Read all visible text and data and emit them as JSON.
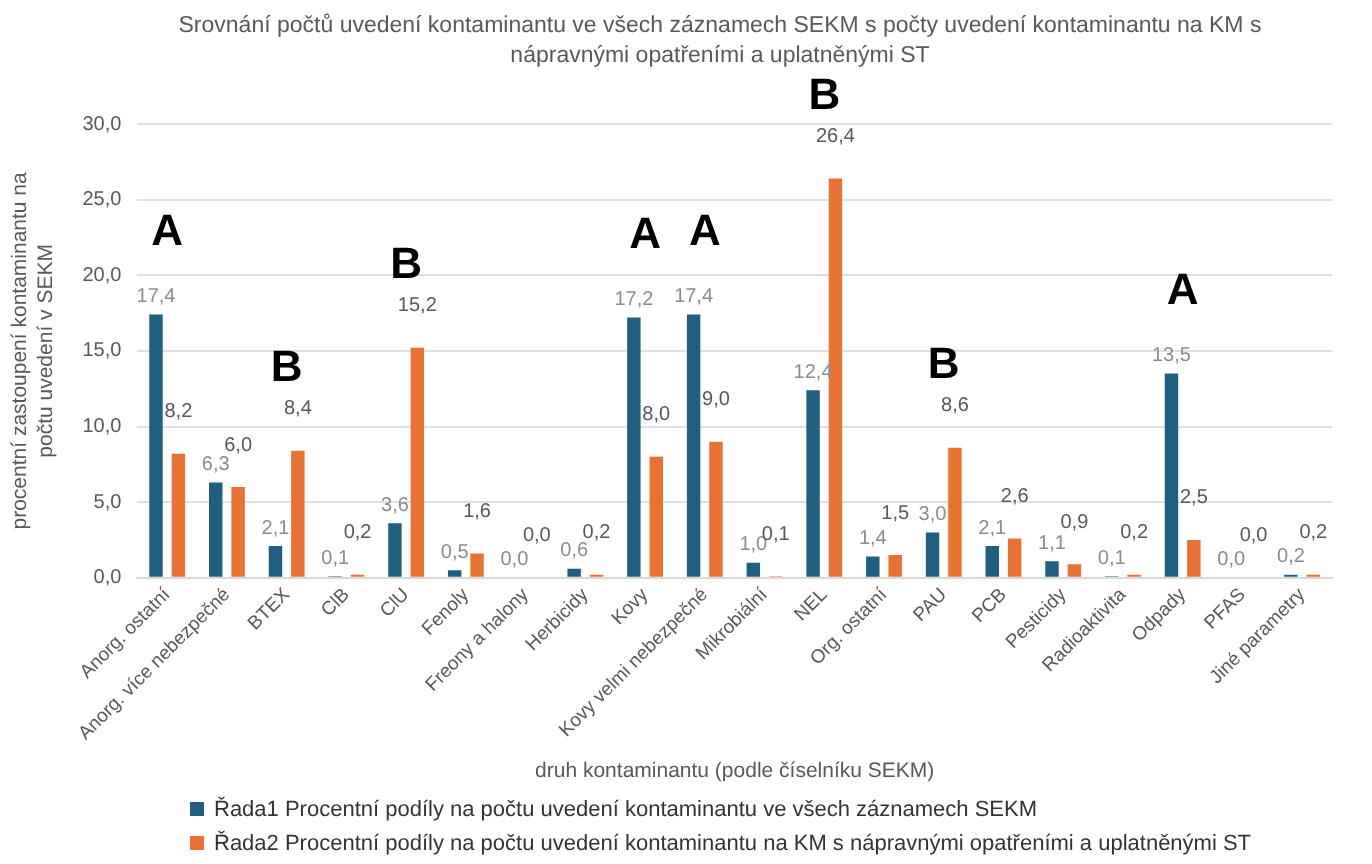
{
  "chart_data": {
    "type": "bar",
    "title": "Srovnání počtů uvedení kontaminantu ve všech záznamech SEKM s počty uvedení kontaminantu na KM s nápravnými opatřeními a uplatněnými ST",
    "xlabel": "druh kontaminantu (podle číselníku SEKM)",
    "ylabel": "procentní zastoupení kontaminantu na počtu uvedení v SEKM",
    "categories": [
      "Anorg. ostatní",
      "Anorg. více nebezpečné",
      "BTEX",
      "ClB",
      "ClU",
      "Fenoly",
      "Freony a halony",
      "Herbicidy",
      "Kovy",
      "Kovy velmi nebezpečné",
      "Mikrobiální",
      "NEL",
      "Org. ostatní",
      "PAU",
      "PCB",
      "Pesticidy",
      "Radioaktivita",
      "Odpady",
      "PFAS",
      "Jiné parametry"
    ],
    "series": [
      {
        "name": "Řada1 Procentní podíly na počtu uvedení kontaminantu ve všech záznamech SEKM",
        "color": "#1f5f82",
        "values": [
          17.4,
          6.3,
          2.1,
          0.1,
          3.6,
          0.5,
          0.0,
          0.6,
          17.2,
          17.4,
          1.0,
          12.4,
          1.4,
          3.0,
          2.1,
          1.1,
          0.1,
          13.5,
          0.0,
          0.2
        ],
        "value_labels": [
          "17,4",
          "6,3",
          "2,1",
          "0,1",
          "3,6",
          "0,5",
          "0,0",
          "0,6",
          "17,2",
          "17,4",
          "1,0",
          "12,4",
          "1,4",
          "3,0",
          "2,1",
          "1,1",
          "0,1",
          "13,5",
          "0,0",
          "0,2"
        ]
      },
      {
        "name": "Řada2 Procentní podíly na počtu uvedení kontaminantu na KM s nápravnými opatřeními a uplatněnými ST",
        "color": "#e97132",
        "values": [
          8.2,
          6.0,
          8.4,
          0.2,
          15.2,
          1.6,
          0.0,
          0.2,
          8.0,
          9.0,
          0.1,
          26.4,
          1.5,
          8.6,
          2.6,
          0.9,
          0.2,
          2.5,
          0.0,
          0.2
        ],
        "value_labels": [
          "8,2",
          "6,0",
          "8,4",
          "0,2",
          "15,2",
          "1,6",
          "0,0",
          "0,2",
          "8,0",
          "9,0",
          "0,1",
          "26,4",
          "1,5",
          "8,6",
          "2,6",
          "0,9",
          "0,2",
          "2,5",
          "0,0",
          "0,2"
        ]
      }
    ],
    "ylim": [
      0,
      30
    ],
    "yticks": [
      {
        "value": 0,
        "label": "0,0"
      },
      {
        "value": 5,
        "label": "5,0"
      },
      {
        "value": 10,
        "label": "10,0"
      },
      {
        "value": 15,
        "label": "15,0"
      },
      {
        "value": 20,
        "label": "20,0"
      },
      {
        "value": 25,
        "label": "25,0"
      },
      {
        "value": 30,
        "label": "30,0"
      }
    ],
    "grid": "y",
    "legend": "bottom",
    "annotations": [
      {
        "text": "A",
        "x": "Anorg. ostatní",
        "y": 17.4
      },
      {
        "text": "B",
        "x": "BTEX",
        "y": 8.4
      },
      {
        "text": "B",
        "x": "ClU",
        "y": 15.2
      },
      {
        "text": "A",
        "x": "Kovy",
        "y": 17.2
      },
      {
        "text": "A",
        "x": "Kovy velmi nebezpečné",
        "y": 17.4
      },
      {
        "text": "B",
        "x": "NEL",
        "y": 26.4
      },
      {
        "text": "B",
        "x": "PAU",
        "y": 8.6
      },
      {
        "text": "A",
        "x": "Odpady",
        "y": 13.5
      }
    ]
  }
}
